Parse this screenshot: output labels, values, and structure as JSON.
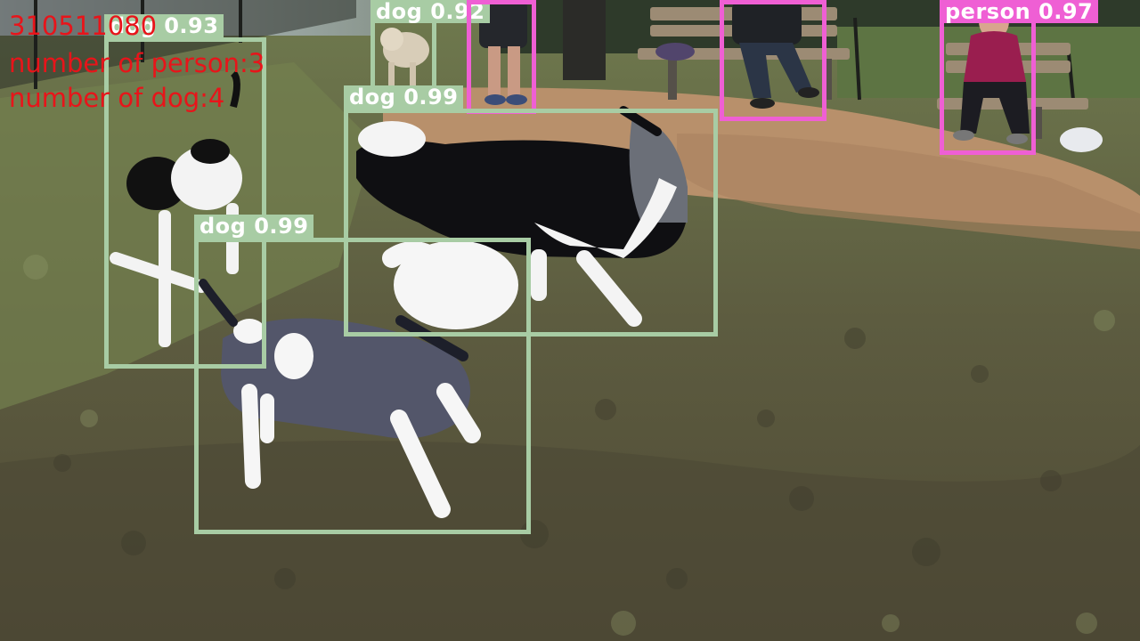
{
  "overlay": {
    "frame_id": "310511080",
    "person_count_text": "number of person:3",
    "dog_count_text": "number of dog:4",
    "text_color": "#e8141a"
  },
  "classes": {
    "dog": {
      "color": "#a8cca4"
    },
    "person": {
      "color": "#ef5fd4"
    }
  },
  "detections": [
    {
      "cls": "dog",
      "label": "dog 0.92"
    },
    {
      "cls": "person",
      "label": ""
    },
    {
      "cls": "person",
      "label": ""
    },
    {
      "cls": "person",
      "label": "person 0.97"
    },
    {
      "cls": "dog",
      "label": "dog 0.93"
    },
    {
      "cls": "dog",
      "label": "dog 0.99"
    },
    {
      "cls": "dog",
      "label": "dog 0.99"
    }
  ]
}
